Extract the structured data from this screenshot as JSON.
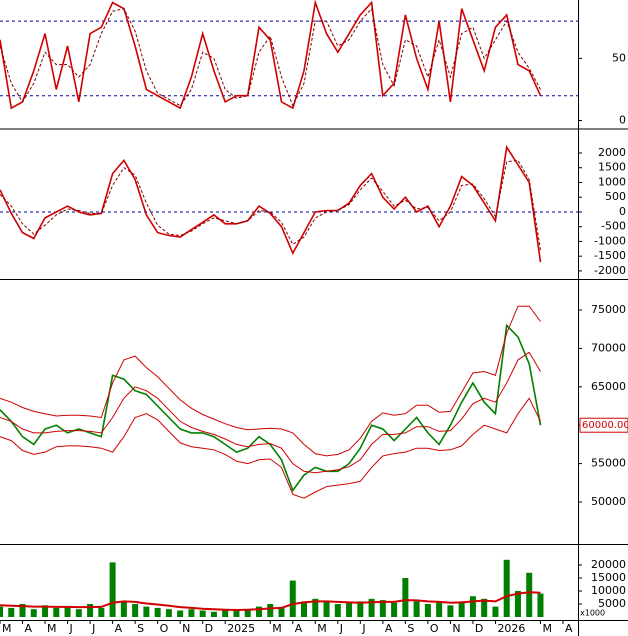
{
  "chart_data": [
    {
      "type": "line",
      "ylim": [
        -6,
        97
      ],
      "yticks": [
        0,
        50
      ],
      "ref_lines": [
        20,
        80
      ],
      "series": [
        {
          "color": "#d00000",
          "values": [
            65,
            10,
            15,
            40,
            70,
            25,
            60,
            15,
            70,
            75,
            95,
            90,
            60,
            25,
            20,
            15,
            10,
            35,
            70,
            40,
            15,
            20,
            20,
            75,
            65,
            15,
            10,
            40,
            95,
            70,
            55,
            70,
            85,
            95,
            20,
            30,
            85,
            50,
            25,
            80,
            15,
            90,
            65,
            40,
            75,
            85,
            45,
            40,
            20,
            null,
            null
          ]
        },
        {
          "color": "#800000",
          "dashed": true,
          "values": [
            60,
            30,
            15,
            30,
            55,
            45,
            45,
            35,
            45,
            70,
            88,
            90,
            72,
            40,
            22,
            17,
            12,
            25,
            55,
            50,
            25,
            18,
            20,
            55,
            68,
            35,
            12,
            30,
            80,
            80,
            60,
            65,
            80,
            90,
            45,
            28,
            65,
            60,
            35,
            65,
            35,
            70,
            75,
            50,
            65,
            80,
            55,
            42,
            25,
            null,
            null
          ]
        }
      ]
    },
    {
      "type": "line",
      "ylim": [
        -2240,
        2780
      ],
      "yticks": [
        -2000,
        -1500,
        -1000,
        -500,
        0,
        500,
        1000,
        1500,
        2000
      ],
      "ref_lines": [
        0
      ],
      "series": [
        {
          "color": "#d00000",
          "values": [
            750,
            -50,
            -700,
            -900,
            -200,
            0,
            200,
            0,
            -100,
            -50,
            1300,
            1750,
            1100,
            -100,
            -700,
            -800,
            -850,
            -600,
            -350,
            -100,
            -400,
            -400,
            -300,
            200,
            -50,
            -500,
            -1400,
            -700,
            0,
            50,
            50,
            300,
            900,
            1300,
            500,
            100,
            500,
            0,
            200,
            -500,
            200,
            1200,
            900,
            300,
            -300,
            2200,
            1600,
            1000,
            -1700,
            null,
            null
          ]
        },
        {
          "color": "#800000",
          "dashed": true,
          "values": [
            600,
            200,
            -400,
            -750,
            -450,
            -100,
            100,
            50,
            -50,
            -50,
            900,
            1500,
            1250,
            300,
            -450,
            -750,
            -800,
            -650,
            -400,
            -200,
            -300,
            -400,
            -300,
            50,
            0,
            -350,
            -1100,
            -850,
            -200,
            0,
            50,
            250,
            750,
            1150,
            700,
            200,
            400,
            100,
            150,
            -300,
            0,
            900,
            950,
            450,
            -150,
            1700,
            1750,
            1100,
            -1300,
            null,
            null
          ]
        }
      ]
    },
    {
      "type": "stock",
      "ylim": [
        44660,
        78780
      ],
      "yticks": [
        50000,
        55000,
        60000,
        65000,
        70000,
        75000
      ],
      "price_label": {
        "value": 60000,
        "label": "60000.00"
      },
      "series": [
        {
          "color": "#008000",
          "values": [
            62000,
            60500,
            58500,
            57500,
            59500,
            60000,
            59000,
            59500,
            59000,
            58500,
            66500,
            66000,
            64500,
            64000,
            62500,
            61000,
            59500,
            59000,
            59000,
            58500,
            57500,
            56500,
            57000,
            58500,
            57500,
            55500,
            51500,
            53500,
            54500,
            54000,
            54000,
            55000,
            57000,
            60000,
            59500,
            58000,
            59500,
            61000,
            59000,
            57500,
            60000,
            63000,
            65500,
            63000,
            61500,
            73000,
            71500,
            68000,
            60000,
            null,
            null
          ]
        },
        {
          "color": "#d00000",
          "values": [
            63500,
            63000,
            62300,
            61800,
            61500,
            61200,
            61300,
            61300,
            61200,
            61000,
            65500,
            68500,
            69000,
            67500,
            66300,
            64800,
            63300,
            62200,
            61400,
            60800,
            60200,
            59700,
            59400,
            59500,
            59600,
            59500,
            59000,
            57500,
            56300,
            56000,
            56200,
            56800,
            58300,
            60500,
            61600,
            61300,
            61500,
            62600,
            62600,
            61700,
            61800,
            64300,
            66800,
            67000,
            66500,
            72000,
            75500,
            75500,
            73500,
            null,
            null
          ]
        },
        {
          "color": "#d00000",
          "values": [
            61000,
            60500,
            59500,
            59000,
            59000,
            59200,
            59300,
            59300,
            59200,
            59000,
            61000,
            63500,
            65000,
            64500,
            63500,
            62000,
            60500,
            59700,
            59200,
            58800,
            58200,
            57500,
            57200,
            57500,
            57600,
            57000,
            55000,
            54000,
            53800,
            54000,
            54200,
            54600,
            55500,
            57500,
            58800,
            58800,
            59000,
            59800,
            59800,
            59200,
            59300,
            60800,
            62800,
            63500,
            63000,
            65500,
            68500,
            69500,
            67000,
            null,
            null
          ]
        },
        {
          "color": "#d00000",
          "values": [
            58500,
            58000,
            56700,
            56200,
            56500,
            57200,
            57300,
            57300,
            57200,
            57000,
            56500,
            58500,
            61000,
            61500,
            60700,
            59200,
            57700,
            57200,
            57000,
            56800,
            56200,
            55300,
            55000,
            55500,
            55600,
            54500,
            51000,
            50500,
            51300,
            52000,
            52200,
            52400,
            52700,
            54500,
            56000,
            56300,
            56500,
            57000,
            57000,
            56700,
            56800,
            57300,
            58800,
            60000,
            59500,
            59000,
            61500,
            63500,
            60500,
            null,
            null
          ]
        }
      ]
    },
    {
      "type": "bar",
      "ylim": [
        -1150,
        27300
      ],
      "yticks": [
        5000,
        10000,
        15000,
        20000
      ],
      "y_label": "x1000",
      "categories": [
        "M",
        null,
        "A",
        null,
        "M",
        null,
        "J",
        null,
        "J",
        null,
        "A",
        null,
        "S",
        null,
        "O",
        null,
        "N",
        null,
        "D",
        null,
        "2025",
        null,
        null,
        null,
        "M",
        null,
        "A",
        null,
        "M",
        null,
        "J",
        null,
        "J",
        null,
        "A",
        null,
        "S",
        null,
        "O",
        null,
        "N",
        null,
        "D",
        null,
        "2026",
        null,
        null,
        null,
        "M",
        null,
        "A"
      ],
      "series": [
        {
          "color": "#008000",
          "values": [
            4000,
            3500,
            5000,
            3000,
            4500,
            3500,
            4000,
            3000,
            5000,
            3500,
            21000,
            6000,
            5000,
            4000,
            3500,
            3000,
            2500,
            3000,
            2500,
            2000,
            3000,
            2500,
            3000,
            4000,
            5000,
            3500,
            14000,
            6000,
            7000,
            6000,
            5000,
            5500,
            6000,
            7000,
            6500,
            5500,
            15000,
            6000,
            5000,
            5500,
            4500,
            6000,
            8000,
            7000,
            4000,
            22000,
            10000,
            17000,
            9000,
            null,
            null
          ]
        },
        {
          "color": "#d00000",
          "type": "line",
          "values": [
            4500,
            4300,
            4200,
            4000,
            4000,
            3900,
            3900,
            3800,
            3800,
            3900,
            5500,
            6000,
            5800,
            5200,
            4800,
            4300,
            3800,
            3500,
            3200,
            3000,
            2800,
            2700,
            2800,
            3000,
            3300,
            3500,
            5000,
            5600,
            6000,
            6000,
            5800,
            5600,
            5500,
            5700,
            5800,
            5800,
            6500,
            6400,
            6000,
            5800,
            5500,
            5600,
            6000,
            6300,
            6000,
            8000,
            9000,
            9500,
            9300,
            null,
            null
          ]
        }
      ]
    }
  ]
}
